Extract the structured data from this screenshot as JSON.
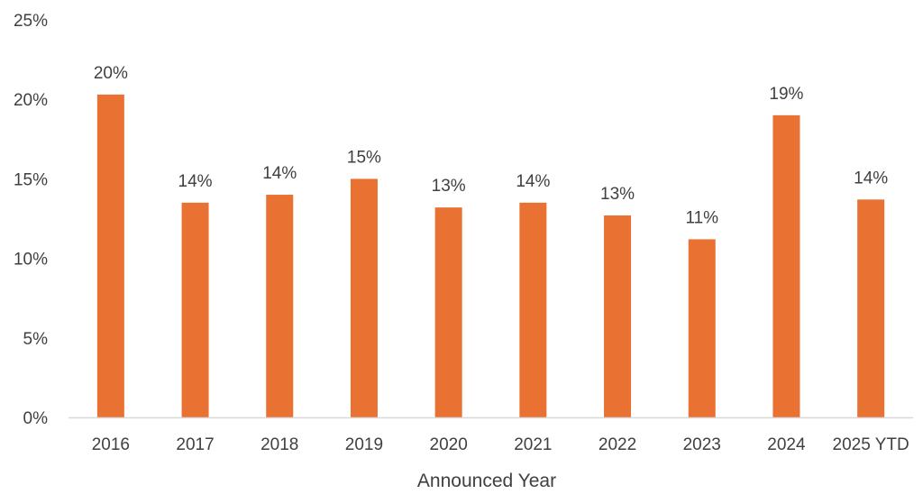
{
  "chart_data": {
    "type": "bar",
    "categories": [
      "2016",
      "2017",
      "2018",
      "2019",
      "2020",
      "2021",
      "2022",
      "2023",
      "2024",
      "2025 YTD"
    ],
    "values": [
      20.3,
      13.5,
      14.0,
      15.0,
      13.2,
      13.5,
      12.7,
      11.2,
      19.0,
      13.7
    ],
    "data_labels": [
      "20%",
      "14%",
      "14%",
      "15%",
      "13%",
      "14%",
      "13%",
      "11%",
      "19%",
      "14%"
    ],
    "title": "",
    "xlabel": "Announced Year",
    "ylabel": "",
    "ylim": [
      0,
      25
    ],
    "yticks": [
      0,
      5,
      10,
      15,
      20,
      25
    ],
    "ytick_labels": [
      "0%",
      "5%",
      "10%",
      "15%",
      "20%",
      "25%"
    ],
    "grid": false,
    "legend": "none",
    "bar_color": "#E97132",
    "axis_color": "#D9D9D9",
    "text_color": "#404040"
  }
}
